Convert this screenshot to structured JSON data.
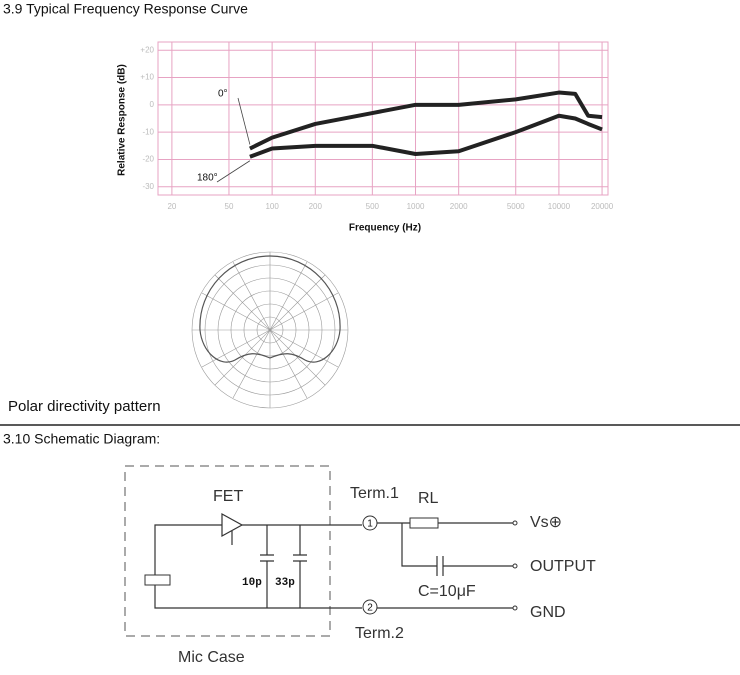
{
  "heading_39": "3.9 Typical Frequency Response Curve",
  "chart_data": {
    "type": "line",
    "xlabel": "Frequency (Hz)",
    "ylabel": "Relative Response (dB)",
    "xscale": "log",
    "x": [
      70,
      100,
      200,
      500,
      1000,
      2000,
      5000,
      10000,
      13000,
      16000,
      20000
    ],
    "series": [
      {
        "name": "0°",
        "color": "#222222",
        "values": [
          -16,
          -12,
          -7,
          -3,
          0,
          0,
          2,
          4.5,
          4,
          -4,
          -4.5
        ]
      },
      {
        "name": "180°",
        "color": "#222222",
        "values": [
          -19,
          -16,
          -15,
          -15,
          -18,
          -17,
          -10,
          -4,
          -5,
          -7,
          -9
        ]
      }
    ],
    "xlim": [
      16,
      22000
    ],
    "ylim": [
      -33,
      23
    ],
    "xticks": [
      20,
      50,
      100,
      200,
      500,
      1000,
      2000,
      5000,
      10000,
      20000
    ],
    "yticks": [
      {
        "value": 20,
        "label": "+20"
      },
      {
        "value": 10,
        "label": "+10"
      },
      0,
      -10,
      -20,
      -30
    ],
    "grid": true,
    "grid_color": "#e7a3c3"
  },
  "polar": {
    "caption": "Polar directivity pattern"
  },
  "schematic": {
    "heading": "3.10 Schematic Diagram:",
    "fet": "FET",
    "term1": "Term.1",
    "term2": "Term.2",
    "node1": "1",
    "node2": "2",
    "rl": "RL",
    "vs": "Vs⊕",
    "output": "OUTPUT",
    "cap": "C=10μF",
    "gnd": "GND",
    "c1": "10p",
    "c2": "33p",
    "case": "Mic Case"
  }
}
